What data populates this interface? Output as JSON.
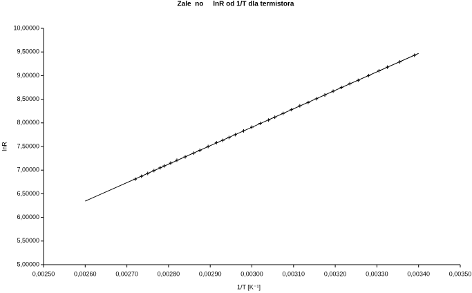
{
  "chart_data": {
    "type": "scatter",
    "title": "Zale  no     lnR od 1/T dla termistora",
    "x_label": "1/T [K⁻¹]",
    "y_label": "lnR",
    "xlim": [
      0.0025,
      0.0035
    ],
    "ylim": [
      5,
      10
    ],
    "xticks": [
      {
        "value": 0.0025,
        "label": "0,00250"
      },
      {
        "value": 0.0026,
        "label": "0,00260"
      },
      {
        "value": 0.0027,
        "label": "0,00270"
      },
      {
        "value": 0.0028,
        "label": "0,00280"
      },
      {
        "value": 0.0029,
        "label": "0,00290"
      },
      {
        "value": 0.003,
        "label": "0,00300"
      },
      {
        "value": 0.0031,
        "label": "0,00310"
      },
      {
        "value": 0.0032,
        "label": "0,00320"
      },
      {
        "value": 0.0033,
        "label": "0,00330"
      },
      {
        "value": 0.0034,
        "label": "0,00340"
      },
      {
        "value": 0.0035,
        "label": "0,00350"
      }
    ],
    "yticks": [
      {
        "value": 5,
        "label": "5,00000"
      },
      {
        "value": 5.5,
        "label": "5,50000"
      },
      {
        "value": 6,
        "label": "6,00000"
      },
      {
        "value": 6.5,
        "label": "6,50000"
      },
      {
        "value": 7,
        "label": "7,00000"
      },
      {
        "value": 7.5,
        "label": "7,50000"
      },
      {
        "value": 8,
        "label": "8,00000"
      },
      {
        "value": 8.5,
        "label": "8,50000"
      },
      {
        "value": 9,
        "label": "9,00000"
      },
      {
        "value": 9.5,
        "label": "9,50000"
      },
      {
        "value": 10,
        "label": "10,00000"
      }
    ],
    "grid": false,
    "series": [
      {
        "marker": "+",
        "color": "#000000",
        "x": [
          0.00272,
          0.002735,
          0.00275,
          0.002765,
          0.00278,
          0.00279,
          0.002805,
          0.00282,
          0.00284,
          0.00286,
          0.002875,
          0.002895,
          0.002915,
          0.00293,
          0.002945,
          0.00296,
          0.00298,
          0.003,
          0.00302,
          0.00304,
          0.003055,
          0.003075,
          0.003095,
          0.003115,
          0.003135,
          0.003155,
          0.003175,
          0.003195,
          0.003215,
          0.003235,
          0.003255,
          0.00328,
          0.003305,
          0.003325,
          0.003355,
          0.00339
        ],
        "values": [
          6.81,
          6.87,
          6.93,
          6.99,
          7.05,
          7.09,
          7.15,
          7.21,
          7.28,
          7.36,
          7.42,
          7.5,
          7.58,
          7.63,
          7.69,
          7.75,
          7.83,
          7.91,
          7.99,
          8.06,
          8.12,
          8.2,
          8.28,
          8.36,
          8.43,
          8.51,
          8.59,
          8.67,
          8.75,
          8.83,
          8.9,
          9.0,
          9.1,
          9.18,
          9.29,
          9.43
        ]
      },
      {
        "line": true,
        "color": "#000000",
        "x": [
          0.0026,
          0.0034
        ],
        "values": [
          6.345,
          9.47
        ]
      }
    ]
  }
}
